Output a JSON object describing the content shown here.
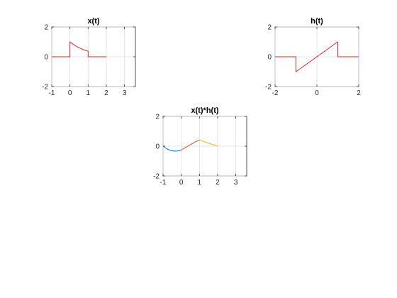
{
  "chart_data": [
    {
      "type": "line",
      "title": "x(t)",
      "xlabel": "",
      "ylabel": "",
      "xlim": [
        -1,
        3.6
      ],
      "ylim": [
        -2,
        2
      ],
      "xticks": [
        -1,
        0,
        1,
        2,
        3
      ],
      "yticks": [
        -2,
        0,
        2
      ],
      "grid": true,
      "series": [
        {
          "color": "#d62728",
          "x": [
            -1,
            -0.001,
            0,
            0.1,
            0.2,
            0.3,
            0.4,
            0.5,
            0.6,
            0.7,
            0.8,
            0.9,
            0.999,
            1,
            2
          ],
          "y": [
            0,
            0,
            1.0,
            0.9,
            0.82,
            0.74,
            0.67,
            0.61,
            0.55,
            0.5,
            0.45,
            0.41,
            0.37,
            0,
            0
          ]
        }
      ]
    },
    {
      "type": "line",
      "title": "h(t)",
      "xlabel": "",
      "ylabel": "",
      "xlim": [
        -2,
        2
      ],
      "ylim": [
        -2,
        2
      ],
      "xticks": [
        -2,
        0,
        2
      ],
      "yticks": [
        -2,
        0,
        2
      ],
      "grid": true,
      "series": [
        {
          "color": "#d62728",
          "x": [
            -2,
            -1.001,
            -1,
            0.999,
            1,
            2
          ],
          "y": [
            0,
            0,
            -1,
            1,
            0,
            0
          ]
        }
      ]
    },
    {
      "type": "line",
      "title": "x(t)*h(t)",
      "xlabel": "",
      "ylabel": "",
      "xlim": [
        -1,
        3.6
      ],
      "ylim": [
        -2,
        2
      ],
      "xticks": [
        -1,
        0,
        1,
        2,
        3
      ],
      "yticks": [
        -2,
        0,
        2
      ],
      "grid": true,
      "series": [
        {
          "color": "#0072bd",
          "x": [
            -1,
            -0.9,
            -0.8,
            -0.7,
            -0.6,
            -0.5,
            -0.4,
            -0.3,
            -0.2,
            -0.1,
            0
          ],
          "y": [
            0,
            -0.09,
            -0.17,
            -0.23,
            -0.28,
            -0.31,
            -0.33,
            -0.33,
            -0.32,
            -0.29,
            -0.26
          ]
        },
        {
          "color": "#d95319",
          "x": [
            0,
            0.25,
            0.5,
            0.75,
            1
          ],
          "y": [
            -0.26,
            -0.08,
            0.1,
            0.27,
            0.42
          ]
        },
        {
          "color": "#edb120",
          "x": [
            1,
            1.25,
            1.5,
            1.75,
            2
          ],
          "y": [
            0.42,
            0.31,
            0.2,
            0.1,
            0
          ]
        }
      ]
    }
  ]
}
